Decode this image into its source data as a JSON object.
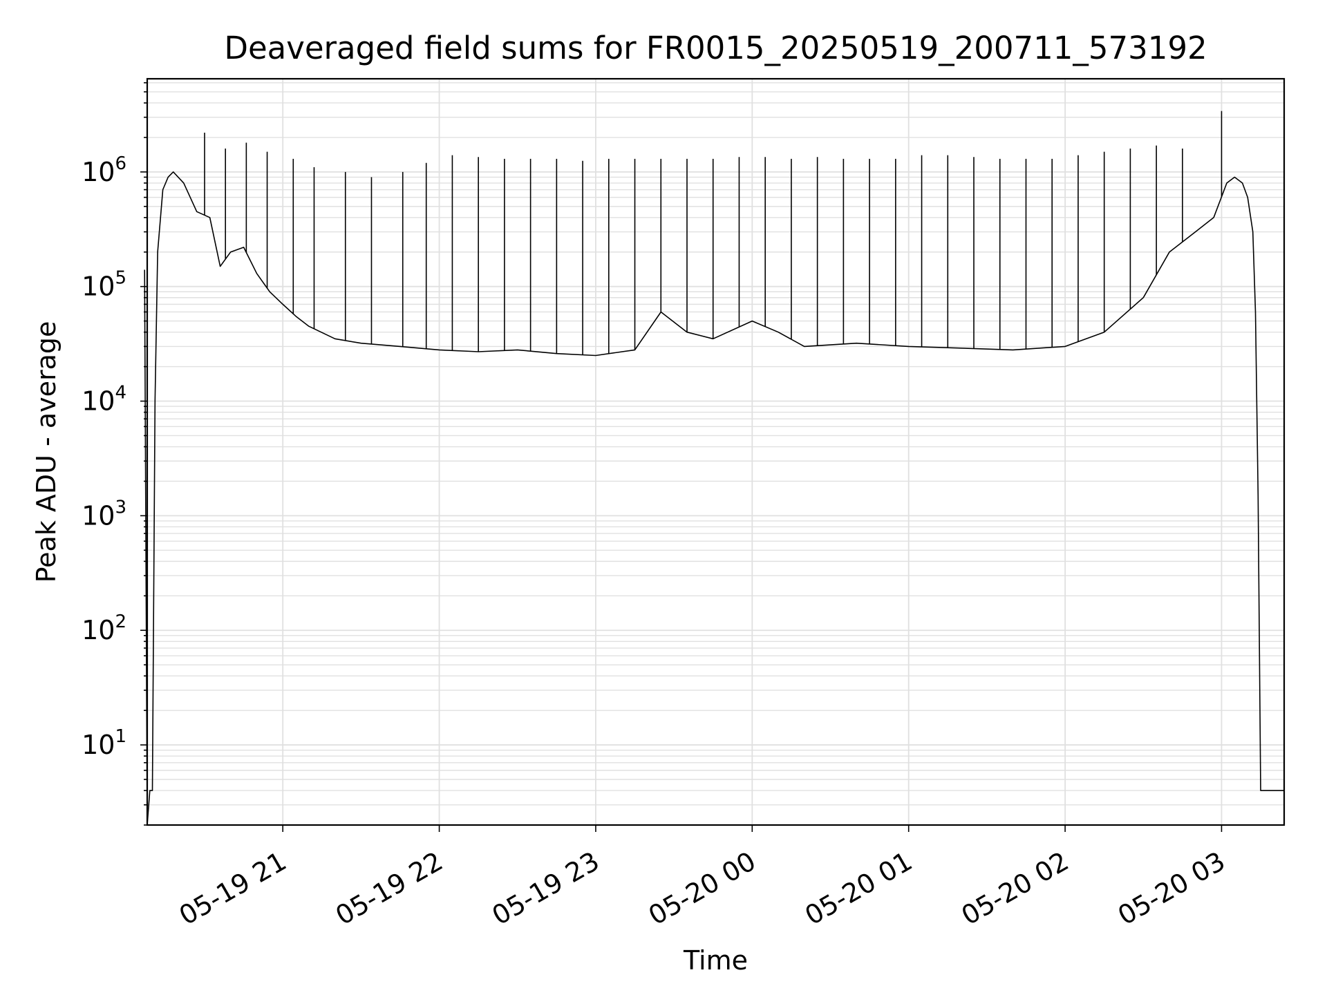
{
  "chart_data": {
    "type": "line",
    "title": "Deaveraged field sums for FR0015_20250519_200711_573192",
    "xlabel": "Time",
    "ylabel": "Peak ADU - average",
    "yscale": "log",
    "grid": true,
    "legend": "none",
    "x_ticks": [
      "05-19 21",
      "05-19 22",
      "05-19 23",
      "05-20 00",
      "05-20 01",
      "05-20 02",
      "05-20 03"
    ],
    "y_ticks": [
      {
        "base": "10",
        "exp": "1"
      },
      {
        "base": "10",
        "exp": "2"
      },
      {
        "base": "10",
        "exp": "3"
      },
      {
        "base": "10",
        "exp": "4"
      },
      {
        "base": "10",
        "exp": "5"
      },
      {
        "base": "10",
        "exp": "6"
      }
    ],
    "xlim": [
      "2025-05-19 20:08",
      "2025-05-20 03:24"
    ],
    "ylim": [
      2,
      6500000
    ],
    "line_color": "#000000",
    "grid_color": "#e0e0e0",
    "series": [
      {
        "x": [
          "2025-05-19 20:07",
          "2025-05-19 20:08",
          "2025-05-19 20:09",
          "2025-05-19 20:10",
          "2025-05-19 20:11",
          "2025-05-19 20:12",
          "2025-05-19 20:14",
          "2025-05-19 20:16",
          "2025-05-19 20:18",
          "2025-05-19 20:22",
          "2025-05-19 20:27",
          "2025-05-19 20:32",
          "2025-05-19 20:36",
          "2025-05-19 20:40",
          "2025-05-19 20:45",
          "2025-05-19 20:50",
          "2025-05-19 20:55",
          "2025-05-19 21:00",
          "2025-05-19 21:05",
          "2025-05-19 21:10",
          "2025-05-19 21:20",
          "2025-05-19 21:30",
          "2025-05-19 21:45",
          "2025-05-19 22:00",
          "2025-05-19 22:15",
          "2025-05-19 22:30",
          "2025-05-19 22:45",
          "2025-05-19 23:00",
          "2025-05-19 23:15",
          "2025-05-19 23:25",
          "2025-05-19 23:35",
          "2025-05-19 23:45",
          "2025-05-20 00:00",
          "2025-05-20 00:10",
          "2025-05-20 00:20",
          "2025-05-20 00:40",
          "2025-05-20 01:00",
          "2025-05-20 01:20",
          "2025-05-20 01:40",
          "2025-05-20 02:00",
          "2025-05-20 02:15",
          "2025-05-20 02:30",
          "2025-05-20 02:40",
          "2025-05-20 02:50",
          "2025-05-20 02:57",
          "2025-05-20 03:02",
          "2025-05-20 03:05",
          "2025-05-20 03:08",
          "2025-05-20 03:10",
          "2025-05-20 03:12",
          "2025-05-20 03:13",
          "2025-05-20 03:14",
          "2025-05-20 03:15",
          "2025-05-20 03:16",
          "2025-05-20 03:24"
        ],
        "y": [
          140000,
          2,
          4,
          4,
          10000,
          200000,
          700000,
          900000,
          1000000,
          800000,
          450000,
          400000,
          150000,
          200000,
          220000,
          130000,
          90000,
          70000,
          55000,
          45000,
          35000,
          32000,
          30000,
          28000,
          27000,
          28000,
          26000,
          25000,
          28000,
          60000,
          40000,
          35000,
          50000,
          40000,
          30000,
          32000,
          30000,
          29000,
          28000,
          30000,
          40000,
          80000,
          200000,
          300000,
          400000,
          800000,
          900000,
          800000,
          600000,
          300000,
          60000,
          1500,
          4,
          4,
          4
        ],
        "spikes": [
          {
            "x": "2025-05-19 20:30",
            "y": 2200000
          },
          {
            "x": "2025-05-19 20:38",
            "y": 1600000
          },
          {
            "x": "2025-05-19 20:46",
            "y": 1800000
          },
          {
            "x": "2025-05-19 20:54",
            "y": 1500000
          },
          {
            "x": "2025-05-19 21:04",
            "y": 1300000
          },
          {
            "x": "2025-05-19 21:12",
            "y": 1100000
          },
          {
            "x": "2025-05-19 21:24",
            "y": 1000000
          },
          {
            "x": "2025-05-19 21:34",
            "y": 900000
          },
          {
            "x": "2025-05-19 21:46",
            "y": 1000000
          },
          {
            "x": "2025-05-19 21:55",
            "y": 1200000
          },
          {
            "x": "2025-05-19 22:05",
            "y": 1400000
          },
          {
            "x": "2025-05-19 22:15",
            "y": 1350000
          },
          {
            "x": "2025-05-19 22:25",
            "y": 1300000
          },
          {
            "x": "2025-05-19 22:35",
            "y": 1300000
          },
          {
            "x": "2025-05-19 22:45",
            "y": 1300000
          },
          {
            "x": "2025-05-19 22:55",
            "y": 1250000
          },
          {
            "x": "2025-05-19 23:05",
            "y": 1300000
          },
          {
            "x": "2025-05-19 23:15",
            "y": 1300000
          },
          {
            "x": "2025-05-19 23:25",
            "y": 1300000
          },
          {
            "x": "2025-05-19 23:35",
            "y": 1300000
          },
          {
            "x": "2025-05-19 23:45",
            "y": 1300000
          },
          {
            "x": "2025-05-19 23:55",
            "y": 1350000
          },
          {
            "x": "2025-05-20 00:05",
            "y": 1350000
          },
          {
            "x": "2025-05-20 00:15",
            "y": 1300000
          },
          {
            "x": "2025-05-20 00:25",
            "y": 1350000
          },
          {
            "x": "2025-05-20 00:35",
            "y": 1300000
          },
          {
            "x": "2025-05-20 00:45",
            "y": 1300000
          },
          {
            "x": "2025-05-20 00:55",
            "y": 1300000
          },
          {
            "x": "2025-05-20 01:05",
            "y": 1400000
          },
          {
            "x": "2025-05-20 01:15",
            "y": 1400000
          },
          {
            "x": "2025-05-20 01:25",
            "y": 1350000
          },
          {
            "x": "2025-05-20 01:35",
            "y": 1300000
          },
          {
            "x": "2025-05-20 01:45",
            "y": 1300000
          },
          {
            "x": "2025-05-20 01:55",
            "y": 1300000
          },
          {
            "x": "2025-05-20 02:05",
            "y": 1400000
          },
          {
            "x": "2025-05-20 02:15",
            "y": 1500000
          },
          {
            "x": "2025-05-20 02:25",
            "y": 1600000
          },
          {
            "x": "2025-05-20 02:35",
            "y": 1700000
          },
          {
            "x": "2025-05-20 02:45",
            "y": 1600000
          },
          {
            "x": "2025-05-20 03:00",
            "y": 3400000
          }
        ]
      }
    ]
  }
}
